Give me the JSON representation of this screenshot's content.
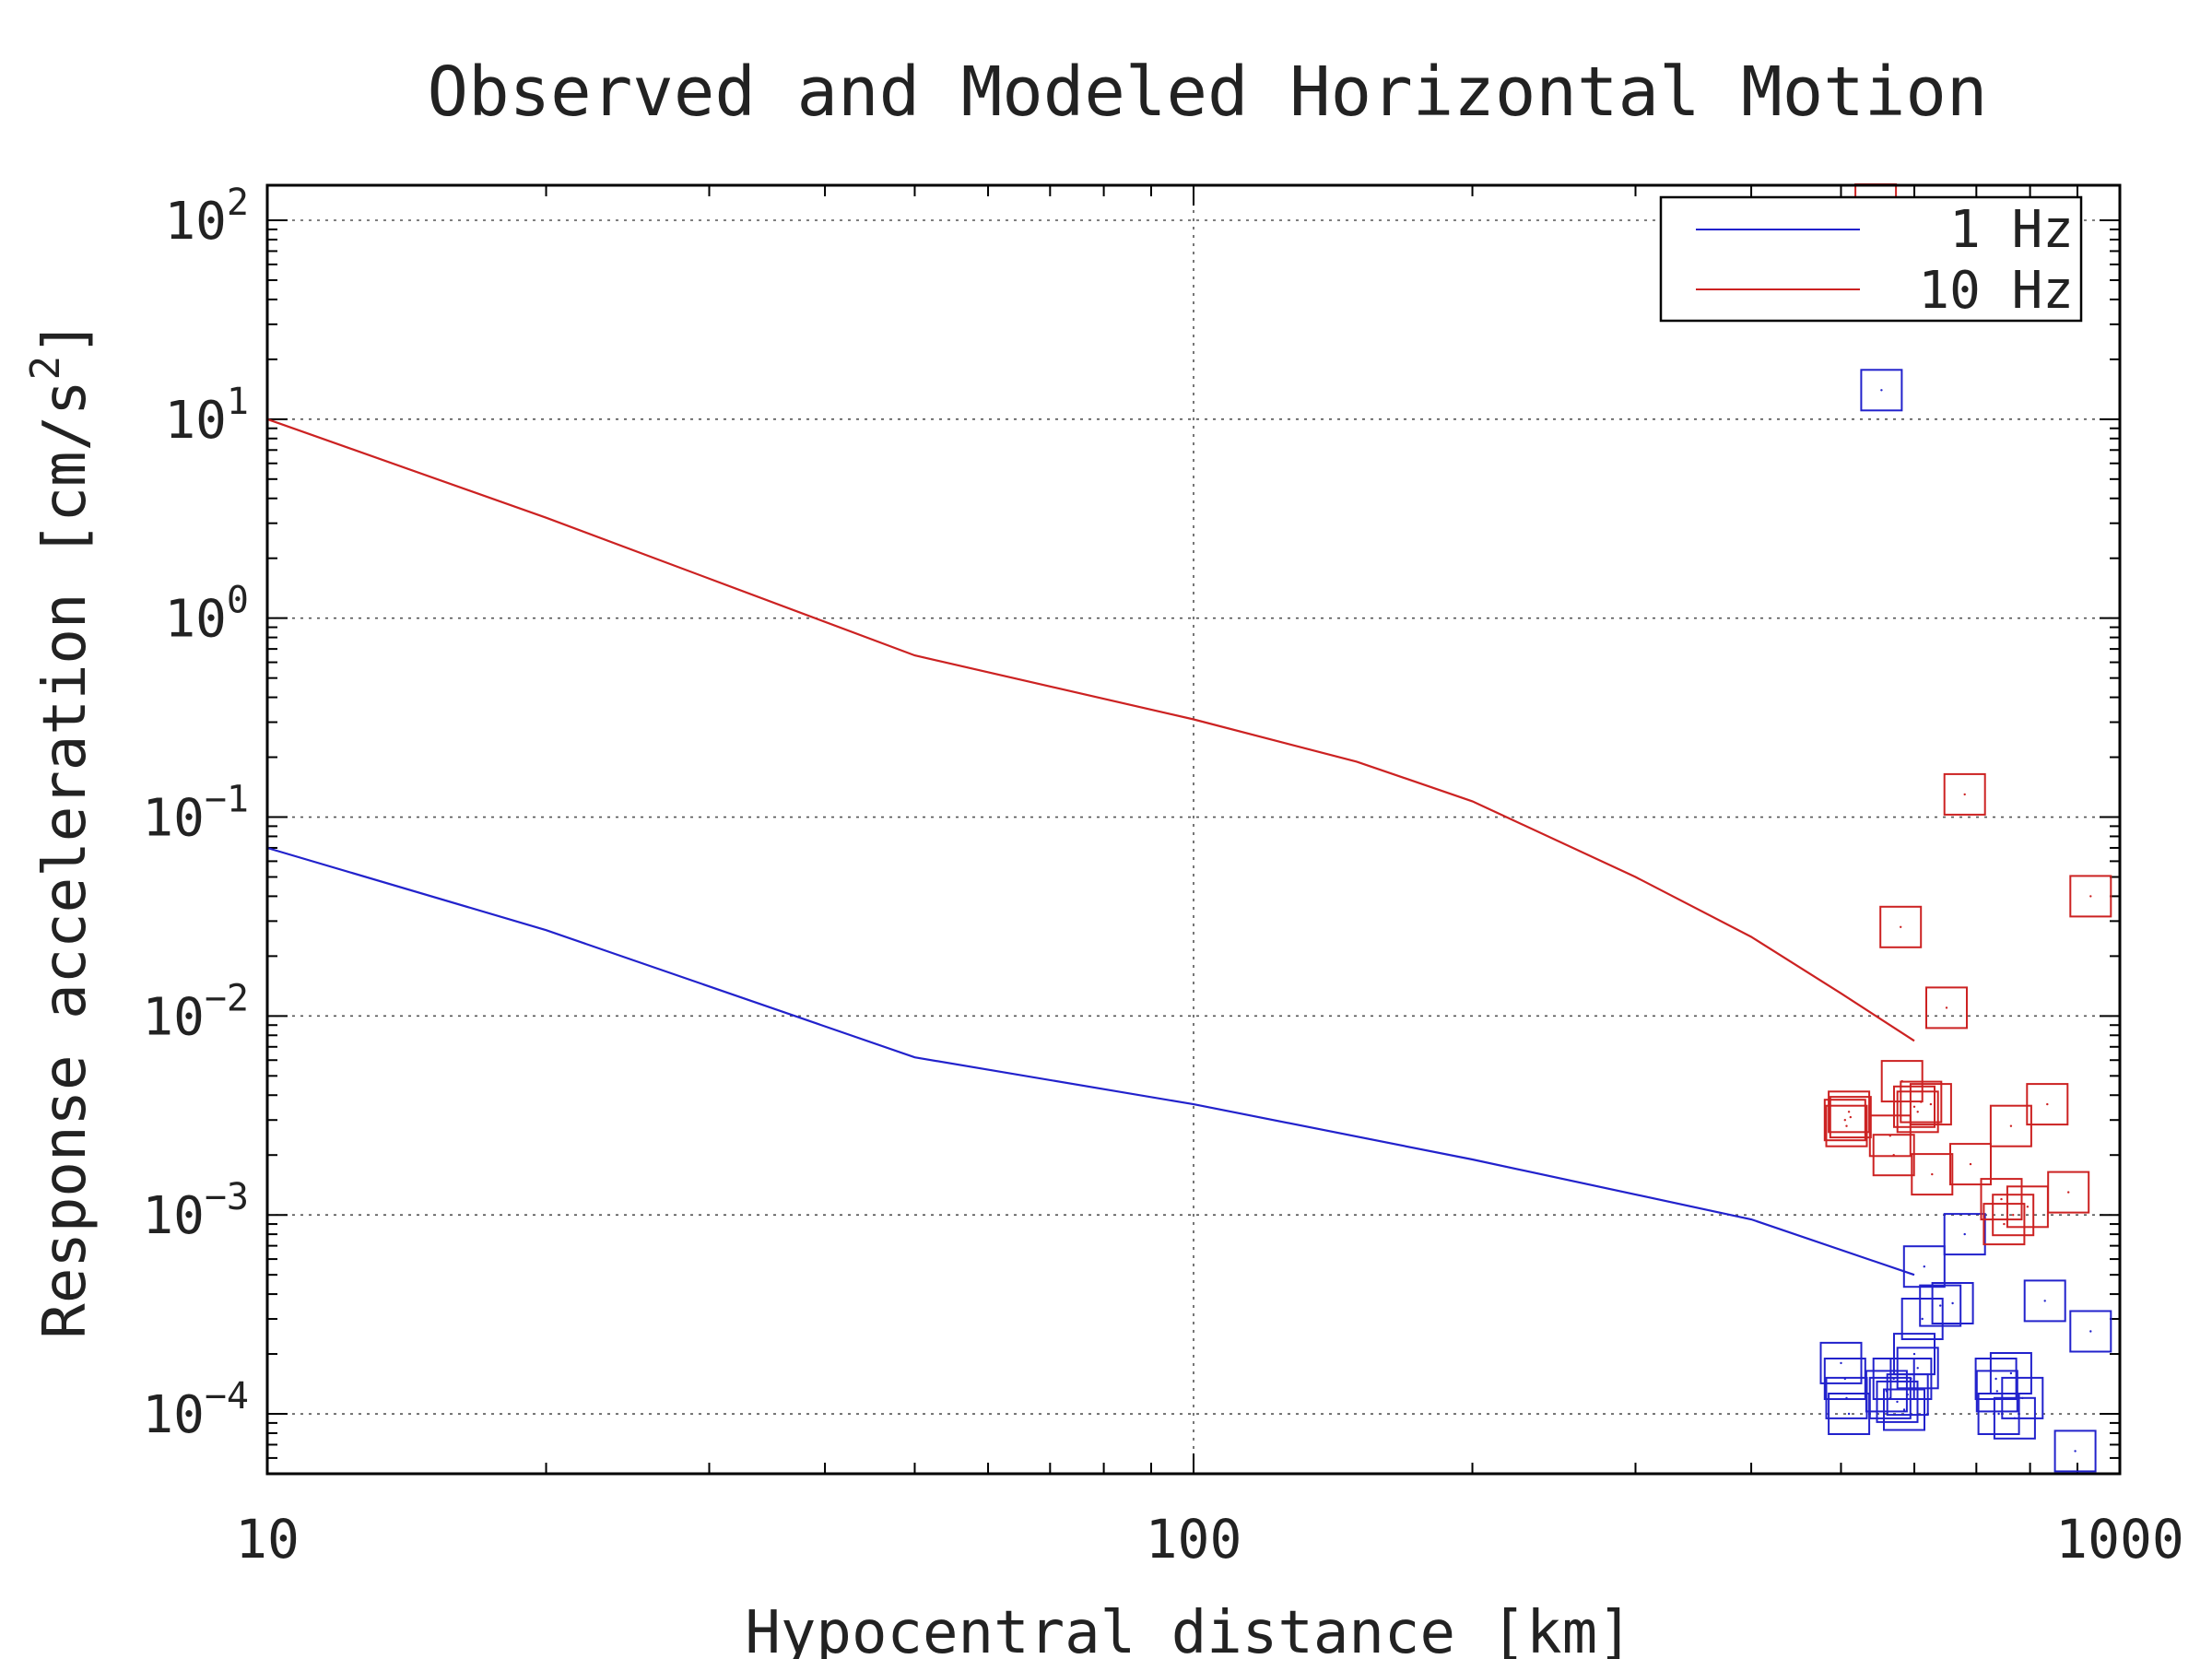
{
  "chart_data": {
    "type": "scatter",
    "title": "Observed and Modeled Horizontal Motion",
    "xlabel": "Hypocentral distance [km]",
    "ylabel_main": "Response acceleration [cm/s",
    "ylabel_sup": "2",
    "ylabel_close": "]",
    "x_scale": "log",
    "y_scale": "log",
    "xlim": [
      10,
      1000
    ],
    "ylim": [
      5e-05,
      150
    ],
    "x_ticks": [
      {
        "value": 10,
        "label": "10"
      },
      {
        "value": 100,
        "label": "100"
      },
      {
        "value": 1000,
        "label": "1000"
      }
    ],
    "y_ticks": [
      {
        "value": 100,
        "base": "10",
        "exp": "2"
      },
      {
        "value": 10,
        "base": "10",
        "exp": "1"
      },
      {
        "value": 1,
        "base": "10",
        "exp": "0"
      },
      {
        "value": 0.1,
        "base": "10",
        "exp": "−1"
      },
      {
        "value": 0.01,
        "base": "10",
        "exp": "−2"
      },
      {
        "value": 0.001,
        "base": "10",
        "exp": "−3"
      },
      {
        "value": 0.0001,
        "base": "10",
        "exp": "−4"
      }
    ],
    "grid": true,
    "legend_position": "top-right",
    "series": [
      {
        "name": "1 Hz",
        "color": "#2222cc",
        "line": [
          [
            10,
            0.07
          ],
          [
            20,
            0.027
          ],
          [
            50,
            0.0062
          ],
          [
            100,
            0.0036
          ],
          [
            200,
            0.0019
          ],
          [
            400,
            0.00095
          ],
          [
            600,
            0.0005
          ]
        ],
        "points": [
          [
            553,
            14
          ],
          [
            500,
            0.00018
          ],
          [
            505,
            0.00015
          ],
          [
            507,
            0.00012
          ],
          [
            510,
            0.0001
          ],
          [
            560,
            0.00013
          ],
          [
            565,
            0.00012
          ],
          [
            570,
            0.00015
          ],
          [
            575,
            0.000115
          ],
          [
            585,
            0.000105
          ],
          [
            590,
            0.000125
          ],
          [
            595,
            0.00015
          ],
          [
            600,
            0.0002
          ],
          [
            605,
            0.00017
          ],
          [
            612,
            0.0003
          ],
          [
            615,
            0.00055
          ],
          [
            640,
            0.00035
          ],
          [
            660,
            0.00036
          ],
          [
            680,
            0.0008
          ],
          [
            735,
            0.00015
          ],
          [
            737,
            0.00013
          ],
          [
            740,
            0.0001
          ],
          [
            763,
            0.00016
          ],
          [
            770,
            9.5e-05
          ],
          [
            785,
            0.00012
          ],
          [
            830,
            0.00037
          ],
          [
            895,
            6.5e-05
          ],
          [
            930,
            0.00026
          ]
        ]
      },
      {
        "name": "10 Hz",
        "color": "#cc2222",
        "line": [
          [
            10,
            10
          ],
          [
            20,
            3.2
          ],
          [
            50,
            0.65
          ],
          [
            100,
            0.31
          ],
          [
            150,
            0.19
          ],
          [
            200,
            0.12
          ],
          [
            300,
            0.05
          ],
          [
            400,
            0.025
          ],
          [
            500,
            0.013
          ],
          [
            600,
            0.0075
          ]
        ],
        "points": [
          [
            545,
            120
          ],
          [
            505,
            0.003
          ],
          [
            507,
            0.0028
          ],
          [
            510,
            0.0033
          ],
          [
            512,
            0.0031
          ],
          [
            565,
            0.0025
          ],
          [
            570,
            0.002
          ],
          [
            580,
            0.028
          ],
          [
            582,
            0.0047
          ],
          [
            600,
            0.0035
          ],
          [
            605,
            0.0033
          ],
          [
            610,
            0.0037
          ],
          [
            625,
            0.0036
          ],
          [
            627,
            0.0016
          ],
          [
            650,
            0.011
          ],
          [
            680,
            0.13
          ],
          [
            690,
            0.0018
          ],
          [
            745,
            0.0012
          ],
          [
            750,
            0.0009
          ],
          [
            763,
            0.0028
          ],
          [
            767,
            0.001
          ],
          [
            795,
            0.0011
          ],
          [
            835,
            0.0036
          ],
          [
            880,
            0.0013
          ],
          [
            930,
            0.04
          ]
        ]
      }
    ]
  }
}
